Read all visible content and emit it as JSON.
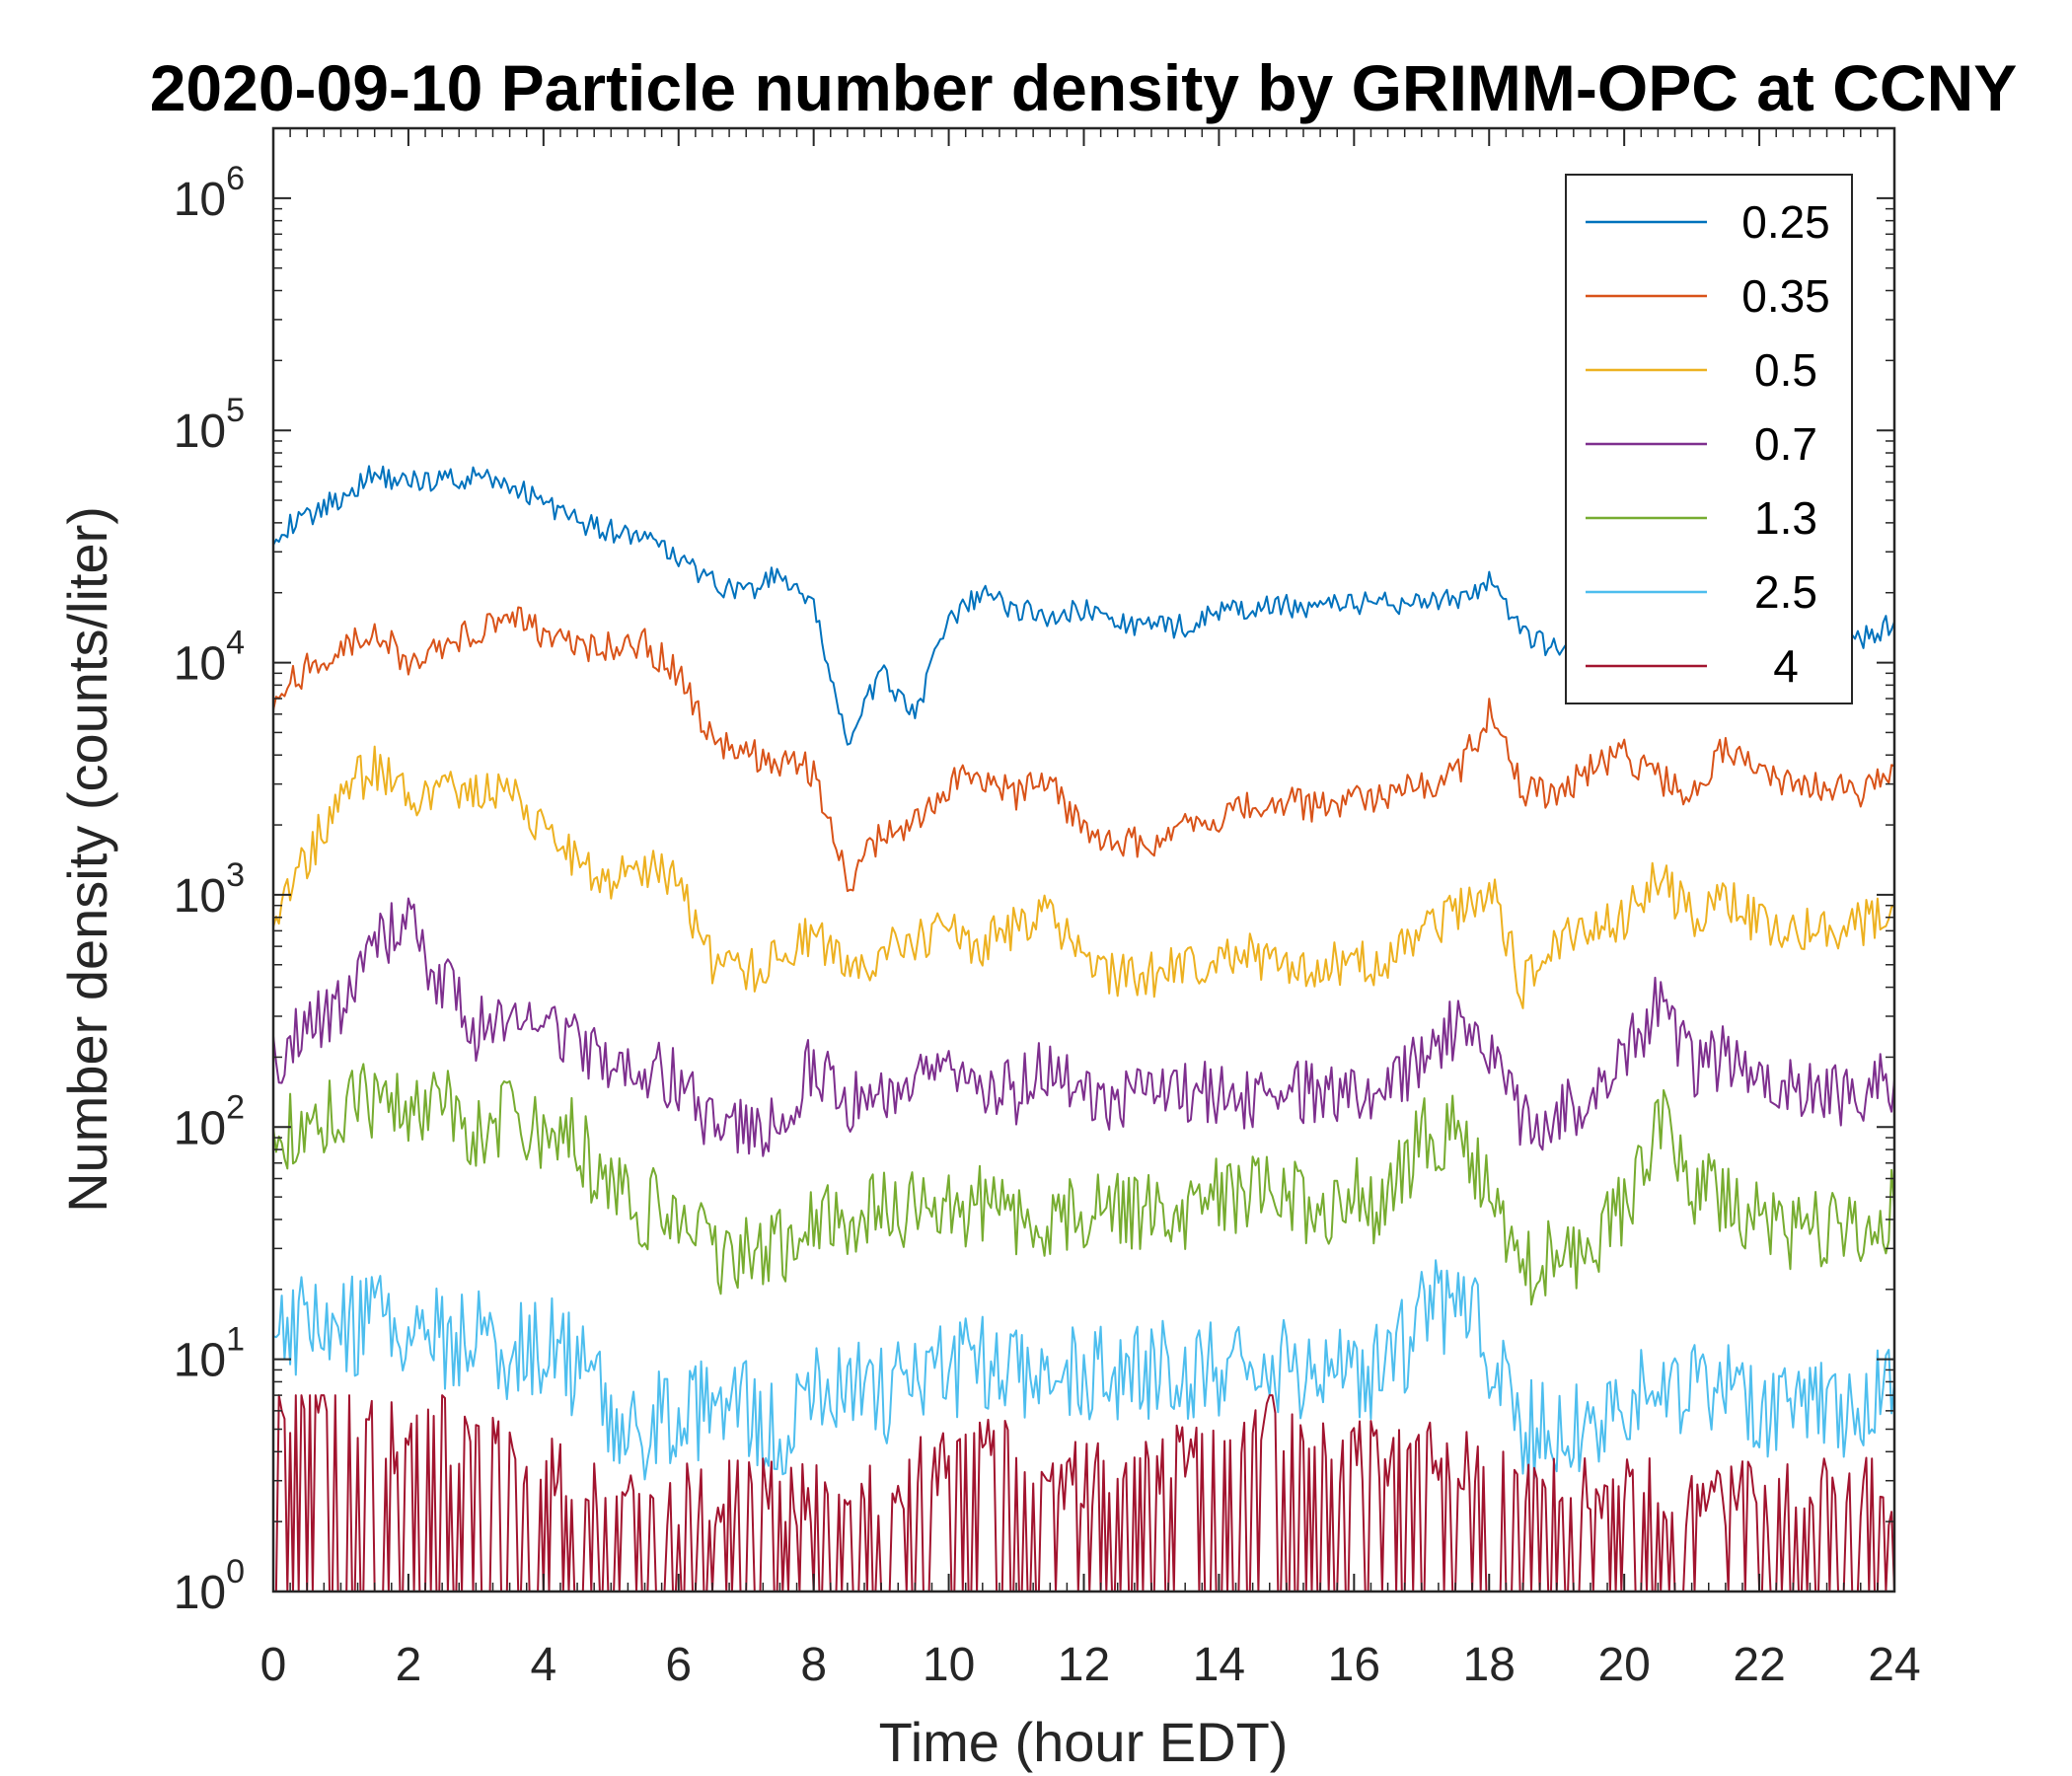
{
  "chart_data": {
    "type": "line",
    "title": "2020-09-10 Particle number density by GRIMM-OPC at CCNY",
    "xlabel": "Time (hour EDT)",
    "ylabel": "Number density (counts/liter)",
    "xlim": [
      0,
      24
    ],
    "ylim": [
      1,
      2000000
    ],
    "yscale": "log",
    "grid": false,
    "legend_position": "top-right",
    "x_ticks": [
      "0",
      "2",
      "4",
      "6",
      "8",
      "10",
      "12",
      "14",
      "16",
      "18",
      "20",
      "22",
      "24"
    ],
    "y_ticks": [
      {
        "base": "10",
        "exp": "0"
      },
      {
        "base": "10",
        "exp": "1"
      },
      {
        "base": "10",
        "exp": "2"
      },
      {
        "base": "10",
        "exp": "3"
      },
      {
        "base": "10",
        "exp": "4"
      },
      {
        "base": "10",
        "exp": "5"
      },
      {
        "base": "10",
        "exp": "6"
      }
    ],
    "series": [
      {
        "name": "0.25",
        "color": "#0072BD",
        "x": [
          0,
          0.5,
          1,
          1.5,
          2,
          2.5,
          3,
          3.5,
          4,
          4.5,
          5,
          5.5,
          6,
          6.5,
          7,
          7.5,
          8,
          8.5,
          9,
          9.5,
          10,
          10.5,
          11,
          11.5,
          12,
          12.5,
          13,
          13.5,
          14,
          14.5,
          15,
          15.5,
          16,
          16.5,
          17,
          17.5,
          18,
          18.5,
          19,
          19.5,
          20,
          20.5,
          21,
          21.5,
          22,
          22.5,
          23,
          23.5,
          24
        ],
        "values": [
          36000,
          42000,
          52000,
          65000,
          60000,
          62000,
          62000,
          58000,
          50000,
          40000,
          37000,
          34000,
          28000,
          22000,
          20000,
          24000,
          17000,
          4500,
          9000,
          6000,
          15000,
          20000,
          17000,
          16000,
          17000,
          15000,
          14000,
          14500,
          16500,
          17000,
          17500,
          17500,
          18000,
          18000,
          18500,
          18500,
          22000,
          13000,
          11500,
          11000,
          11000,
          11500,
          11500,
          11500,
          11500,
          12000,
          11500,
          12500,
          15000
        ]
      },
      {
        "name": "0.35",
        "color": "#D95319",
        "x": [
          0,
          0.5,
          1,
          1.5,
          2,
          2.5,
          3,
          3.5,
          4,
          4.5,
          5,
          5.5,
          6,
          6.5,
          7,
          7.5,
          8,
          8.5,
          9,
          9.5,
          10,
          10.5,
          11,
          11.5,
          12,
          12.5,
          13,
          13.5,
          14,
          14.5,
          15,
          15.5,
          16,
          16.5,
          17,
          17.5,
          18,
          18.5,
          19,
          19.5,
          20,
          20.5,
          21,
          21.5,
          22,
          22.5,
          23,
          23.5,
          24
        ],
        "values": [
          7000,
          9500,
          12000,
          14000,
          10000,
          12000,
          14000,
          16000,
          13000,
          11500,
          11500,
          12000,
          9000,
          4500,
          4000,
          3800,
          3400,
          1100,
          1800,
          2000,
          3000,
          3200,
          2700,
          3200,
          1800,
          1700,
          1700,
          1900,
          2100,
          2400,
          2500,
          2400,
          2500,
          2700,
          2900,
          3200,
          6000,
          2800,
          2700,
          3500,
          4000,
          3200,
          2600,
          4500,
          3500,
          3000,
          2900,
          2700,
          3600
        ]
      },
      {
        "name": "0.5",
        "color": "#EDB120",
        "x": [
          0,
          0.5,
          1,
          1.5,
          2,
          2.5,
          3,
          3.5,
          4,
          4.5,
          5,
          5.5,
          6,
          6.5,
          7,
          7.5,
          8,
          8.5,
          9,
          9.5,
          10,
          10.5,
          11,
          11.5,
          12,
          12.5,
          13,
          13.5,
          14,
          14.5,
          15,
          15.5,
          16,
          16.5,
          17,
          17.5,
          18,
          18.5,
          19,
          19.5,
          20,
          20.5,
          21,
          21.5,
          22,
          22.5,
          23,
          23.5,
          24
        ],
        "values": [
          850,
          1400,
          2800,
          3500,
          2700,
          2800,
          2600,
          2900,
          1800,
          1400,
          1200,
          1300,
          1100,
          500,
          450,
          550,
          700,
          450,
          550,
          650,
          700,
          600,
          750,
          800,
          500,
          450,
          450,
          500,
          550,
          550,
          480,
          500,
          500,
          500,
          700,
          850,
          1100,
          400,
          600,
          700,
          800,
          1200,
          800,
          1000,
          750,
          750,
          700,
          750,
          900
        ]
      },
      {
        "name": "0.7",
        "color": "#7E2F8E",
        "x": [
          0,
          0.5,
          1,
          1.5,
          2,
          2.5,
          3,
          3.5,
          4,
          4.5,
          5,
          5.5,
          6,
          6.5,
          7,
          7.5,
          8,
          8.5,
          9,
          9.5,
          10,
          10.5,
          11,
          11.5,
          12,
          12.5,
          13,
          13.5,
          14,
          14.5,
          15,
          15.5,
          16,
          16.5,
          17,
          17.5,
          18,
          18.5,
          19,
          19.5,
          20,
          20.5,
          21,
          21.5,
          22,
          22.5,
          23,
          23.5,
          24
        ],
        "values": [
          200,
          260,
          320,
          650,
          750,
          420,
          260,
          300,
          260,
          220,
          190,
          180,
          160,
          100,
          95,
          110,
          190,
          130,
          150,
          160,
          170,
          160,
          140,
          190,
          130,
          130,
          140,
          140,
          140,
          130,
          140,
          140,
          140,
          150,
          190,
          270,
          200,
          100,
          110,
          140,
          200,
          350,
          180,
          200,
          170,
          150,
          140,
          140,
          160
        ]
      },
      {
        "name": "1.3",
        "color": "#77AC30",
        "x": [
          0,
          0.5,
          1,
          1.5,
          2,
          2.5,
          3,
          3.5,
          4,
          4.5,
          5,
          5.5,
          6,
          6.5,
          7,
          7.5,
          8,
          8.5,
          9,
          9.5,
          10,
          10.5,
          11,
          11.5,
          12,
          12.5,
          13,
          13.5,
          14,
          14.5,
          15,
          15.5,
          16,
          16.5,
          17,
          17.5,
          18,
          18.5,
          19,
          19.5,
          20,
          20.5,
          21,
          21.5,
          22,
          22.5,
          23,
          23.5,
          24
        ],
        "values": [
          80,
          110,
          120,
          130,
          130,
          120,
          100,
          110,
          100,
          90,
          50,
          45,
          45,
          28,
          30,
          30,
          40,
          40,
          45,
          45,
          45,
          45,
          40,
          40,
          45,
          45,
          45,
          45,
          50,
          50,
          50,
          45,
          50,
          45,
          95,
          95,
          60,
          25,
          28,
          30,
          45,
          110,
          55,
          50,
          40,
          35,
          35,
          35,
          45
        ]
      },
      {
        "name": "2.5",
        "color": "#4DBEEE",
        "x": [
          0,
          0.5,
          1,
          1.5,
          2,
          2.5,
          3,
          3.5,
          4,
          4.5,
          5,
          5.5,
          6,
          6.5,
          7,
          7.5,
          8,
          8.5,
          9,
          9.5,
          10,
          10.5,
          11,
          11.5,
          12,
          12.5,
          13,
          13.5,
          14,
          14.5,
          15,
          15.5,
          16,
          16.5,
          17,
          17.5,
          18,
          18.5,
          19,
          19.5,
          20,
          20.5,
          21,
          21.5,
          22,
          22.5,
          23,
          23.5,
          24
        ],
        "values": [
          12,
          15,
          14,
          14,
          13,
          12,
          12,
          10,
          12,
          9,
          6,
          5,
          6,
          6,
          6,
          5,
          7,
          8,
          7,
          8,
          9,
          10,
          9,
          9,
          9,
          9,
          9,
          9,
          9,
          9,
          9,
          9,
          9,
          9,
          15,
          18,
          11,
          5,
          5,
          5,
          7,
          10,
          7,
          8,
          6,
          6,
          6,
          6,
          8
        ]
      },
      {
        "name": "4",
        "color": "#A2142F",
        "x": [
          0,
          0.5,
          1,
          1.5,
          2,
          2.5,
          3,
          3.5,
          4,
          4.5,
          5,
          5.5,
          6,
          6.5,
          7,
          7.5,
          8,
          8.5,
          9,
          9.5,
          10,
          10.5,
          11,
          11.5,
          12,
          12.5,
          13,
          13.5,
          14,
          14.5,
          15,
          15.5,
          16,
          16.5,
          17,
          17.5,
          18,
          18.5,
          19,
          19.5,
          20,
          20.5,
          21,
          21.5,
          22,
          22.5,
          23,
          23.5,
          24
        ],
        "values": [
          2,
          3,
          3,
          2,
          1.5,
          2,
          1.5,
          1.5,
          1.5,
          1.2,
          1,
          1,
          1,
          1,
          1,
          1,
          1,
          1,
          1,
          1.3,
          1.3,
          1.5,
          1.5,
          1.2,
          1.2,
          1.2,
          1.2,
          1.5,
          1.5,
          2,
          2,
          1.5,
          1.5,
          1.5,
          1.5,
          1.5,
          1.2,
          1,
          1,
          1,
          1,
          1,
          1,
          1,
          1,
          1,
          1,
          1,
          1
        ]
      }
    ]
  }
}
